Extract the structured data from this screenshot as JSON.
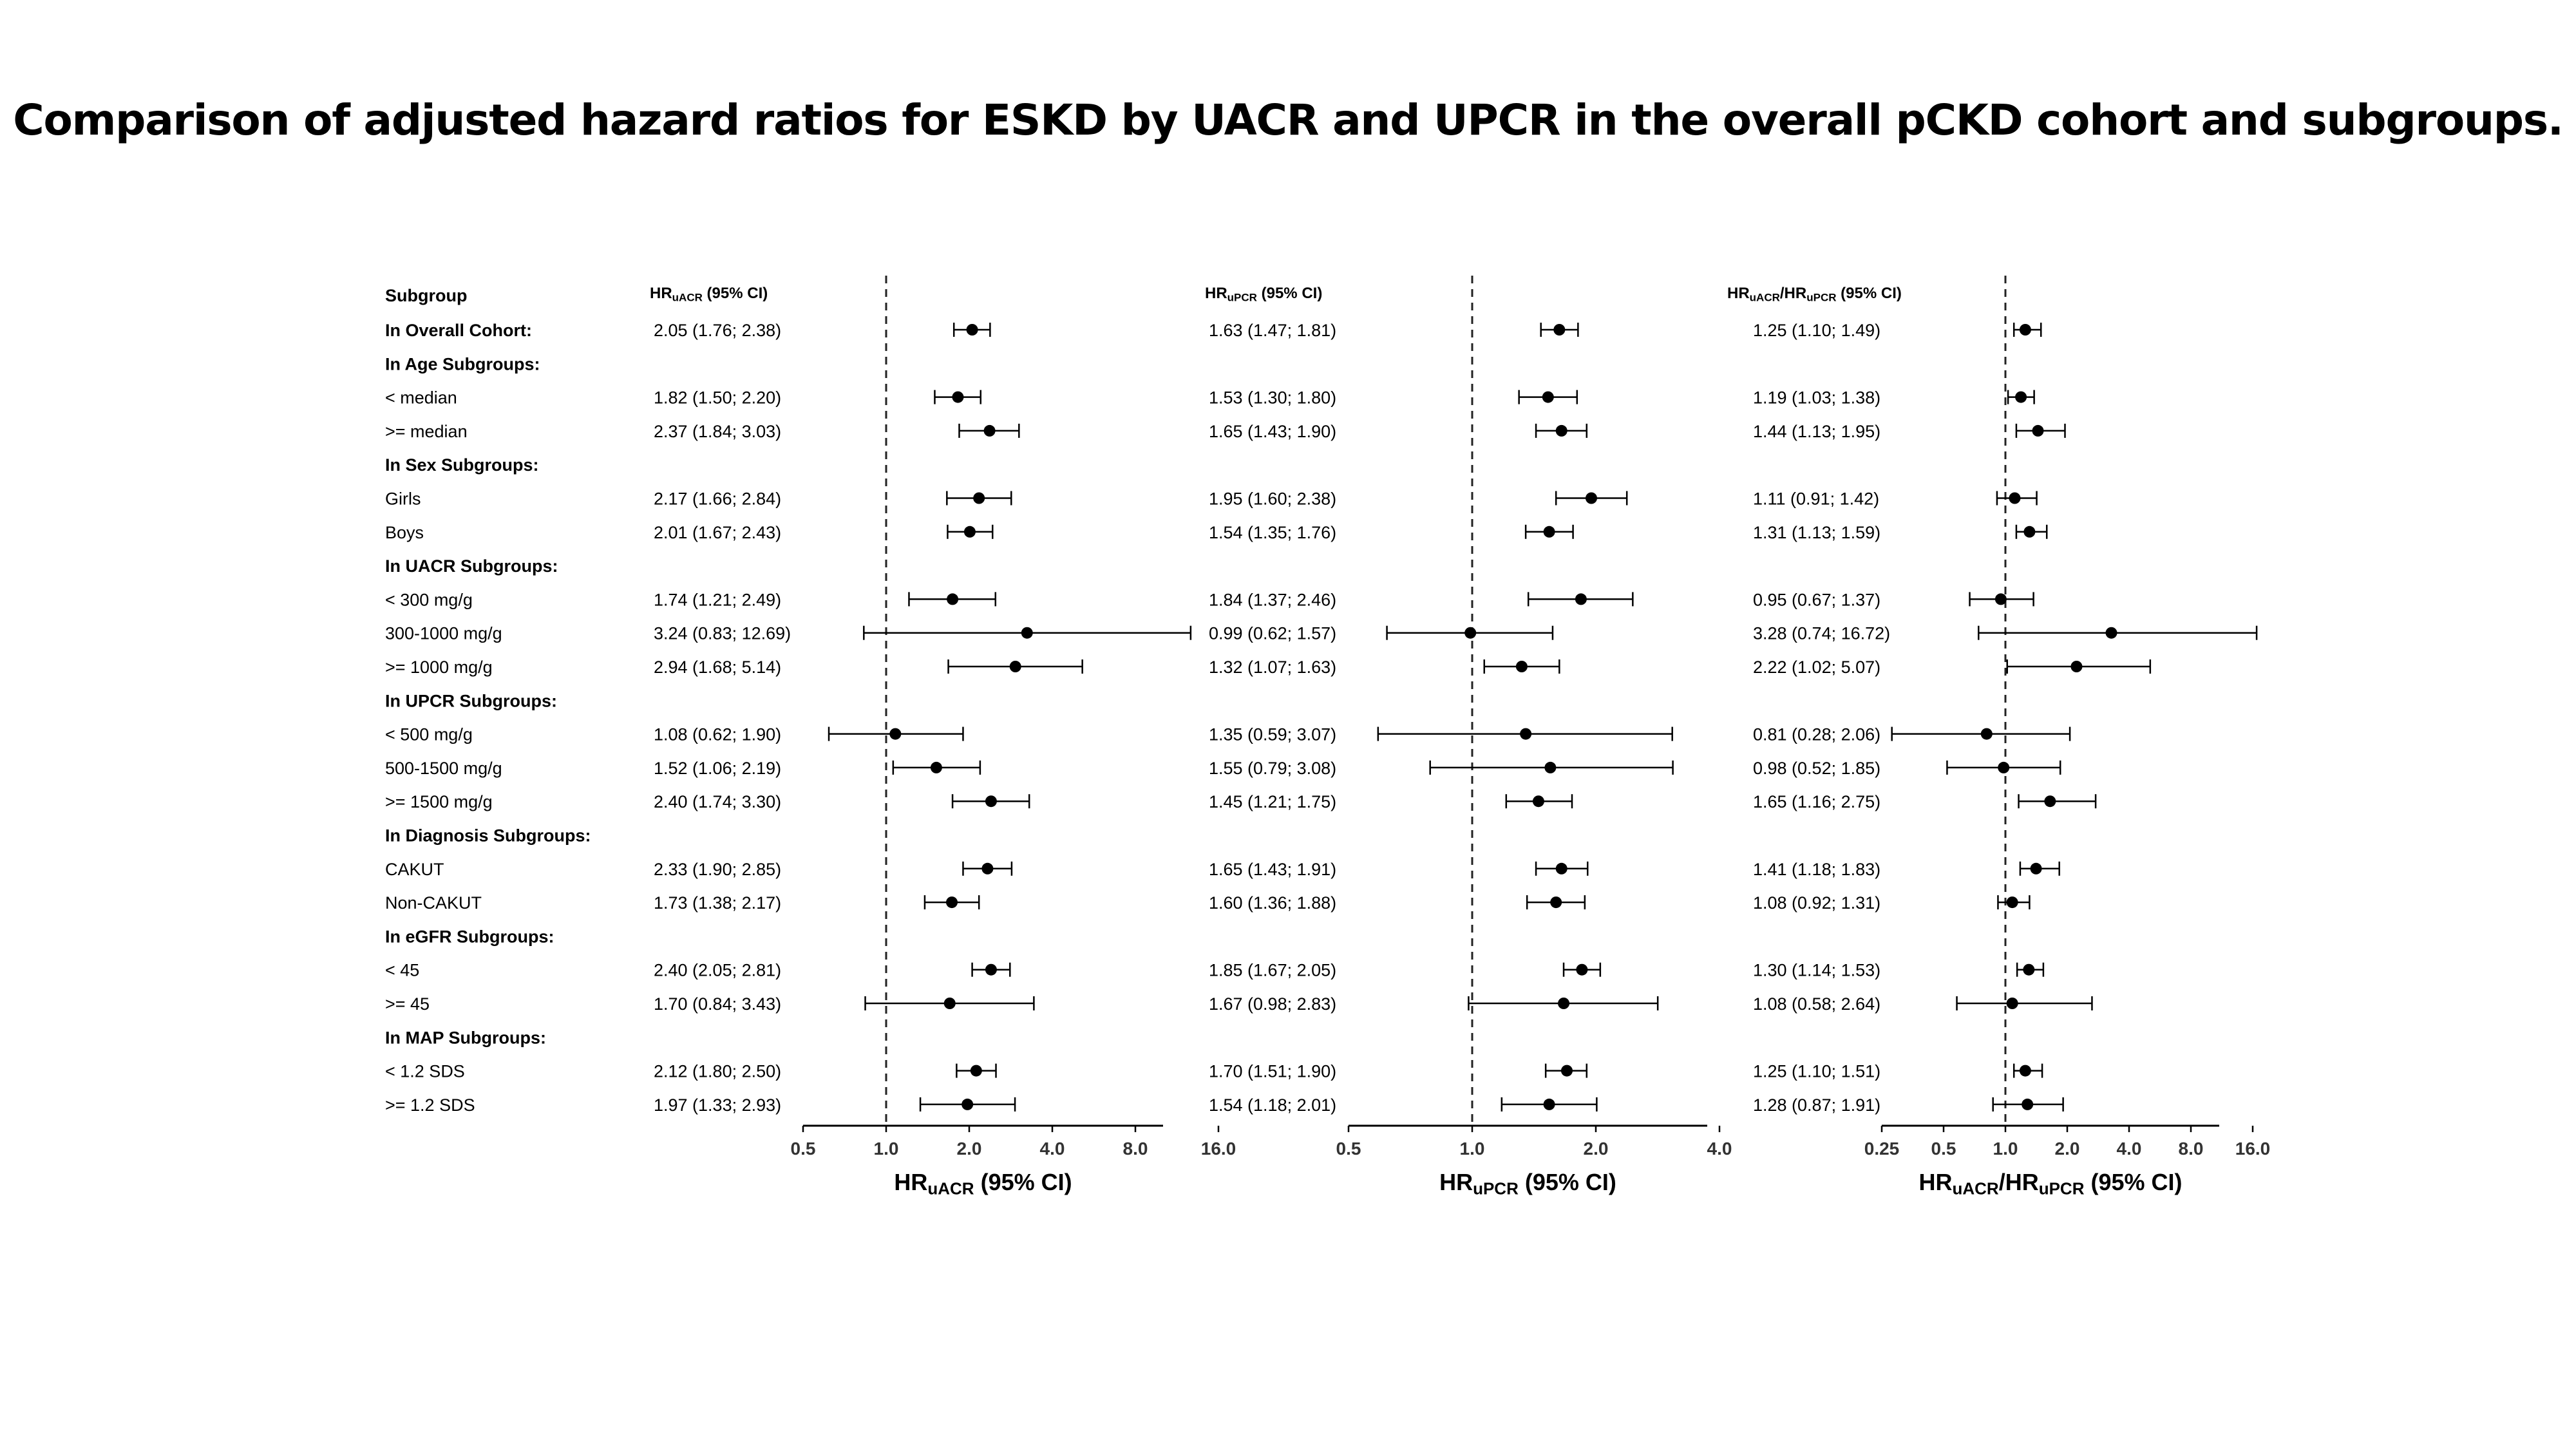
{
  "title": "Comparison of adjusted hazard ratios for ESKD by UACR and UPCR in the overall pCKD cohort and subgroups.",
  "subgroup_header": "Subgroup",
  "rows": [
    {
      "label": "In Overall Cohort:",
      "bold": true
    },
    {
      "label": "In Age Subgroups:",
      "bold": true
    },
    {
      "label": "< median"
    },
    {
      "label": ">= median"
    },
    {
      "label": "In Sex Subgroups:",
      "bold": true
    },
    {
      "label": "Girls"
    },
    {
      "label": "Boys"
    },
    {
      "label": "In UACR Subgroups:",
      "bold": true
    },
    {
      "label": "< 300 mg/g"
    },
    {
      "label": "300-1000 mg/g"
    },
    {
      "label": ">= 1000 mg/g"
    },
    {
      "label": "In UPCR Subgroups:",
      "bold": true
    },
    {
      "label": "< 500 mg/g"
    },
    {
      "label": "500-1500 mg/g"
    },
    {
      "label": ">= 1500 mg/g"
    },
    {
      "label": "In Diagnosis Subgroups:",
      "bold": true
    },
    {
      "label": "CAKUT"
    },
    {
      "label": "Non-CAKUT"
    },
    {
      "label": "In eGFR Subgroups:",
      "bold": true
    },
    {
      "label": "< 45"
    },
    {
      "label": ">= 45"
    },
    {
      "label": "In MAP Subgroups:",
      "bold": true
    },
    {
      "label": "< 1.2 SDS"
    },
    {
      "label": ">= 1.2 SDS"
    }
  ],
  "chart_data": [
    {
      "type": "scatter",
      "subtype": "forest",
      "column_header": {
        "main": "HR",
        "sub": "uACR",
        "tail": " (95% CI)"
      },
      "xlabel": {
        "main": "HR",
        "sub": "uACR",
        "tail": " (95% CI)"
      },
      "x_scale": "log2",
      "xlim": [
        0.5,
        16.0
      ],
      "ticks": [
        0.5,
        1.0,
        2.0,
        4.0,
        8.0,
        16.0
      ],
      "tick_labels": [
        "0.5",
        "1.0",
        "2.0",
        "4.0",
        "8.0",
        "16.0"
      ],
      "reference_line": 1.0,
      "points": [
        {
          "row": 0,
          "est": 2.05,
          "lo": 1.76,
          "hi": 2.38,
          "text": "2.05 (1.76; 2.38)"
        },
        {
          "row": 2,
          "est": 1.82,
          "lo": 1.5,
          "hi": 2.2,
          "text": "1.82 (1.50; 2.20)"
        },
        {
          "row": 3,
          "est": 2.37,
          "lo": 1.84,
          "hi": 3.03,
          "text": "2.37 (1.84; 3.03)"
        },
        {
          "row": 5,
          "est": 2.17,
          "lo": 1.66,
          "hi": 2.84,
          "text": "2.17 (1.66; 2.84)"
        },
        {
          "row": 6,
          "est": 2.01,
          "lo": 1.67,
          "hi": 2.43,
          "text": "2.01 (1.67; 2.43)"
        },
        {
          "row": 8,
          "est": 1.74,
          "lo": 1.21,
          "hi": 2.49,
          "text": "1.74 (1.21; 2.49)"
        },
        {
          "row": 9,
          "est": 3.24,
          "lo": 0.83,
          "hi": 12.69,
          "text": "3.24 (0.83; 12.69)"
        },
        {
          "row": 10,
          "est": 2.94,
          "lo": 1.68,
          "hi": 5.14,
          "text": "2.94 (1.68; 5.14)"
        },
        {
          "row": 12,
          "est": 1.08,
          "lo": 0.62,
          "hi": 1.9,
          "text": "1.08 (0.62; 1.90)"
        },
        {
          "row": 13,
          "est": 1.52,
          "lo": 1.06,
          "hi": 2.19,
          "text": "1.52 (1.06; 2.19)"
        },
        {
          "row": 14,
          "est": 2.4,
          "lo": 1.74,
          "hi": 3.3,
          "text": "2.40 (1.74; 3.30)"
        },
        {
          "row": 16,
          "est": 2.33,
          "lo": 1.9,
          "hi": 2.85,
          "text": "2.33 (1.90; 2.85)"
        },
        {
          "row": 17,
          "est": 1.73,
          "lo": 1.38,
          "hi": 2.17,
          "text": "1.73 (1.38; 2.17)"
        },
        {
          "row": 19,
          "est": 2.4,
          "lo": 2.05,
          "hi": 2.81,
          "text": "2.40 (2.05; 2.81)"
        },
        {
          "row": 20,
          "est": 1.7,
          "lo": 0.84,
          "hi": 3.43,
          "text": "1.70 (0.84; 3.43)"
        },
        {
          "row": 22,
          "est": 2.12,
          "lo": 1.8,
          "hi": 2.5,
          "text": "2.12 (1.80; 2.50)"
        },
        {
          "row": 23,
          "est": 1.97,
          "lo": 1.33,
          "hi": 2.93,
          "text": "1.97 (1.33; 2.93)"
        }
      ]
    },
    {
      "type": "scatter",
      "subtype": "forest",
      "column_header": {
        "main": "HR",
        "sub": "uPCR",
        "tail": " (95% CI)"
      },
      "xlabel": {
        "main": "HR",
        "sub": "uPCR",
        "tail": " (95% CI)"
      },
      "x_scale": "log2",
      "xlim": [
        0.5,
        4.0
      ],
      "ticks": [
        0.5,
        1.0,
        2.0,
        4.0
      ],
      "tick_labels": [
        "0.5",
        "1.0",
        "2.0",
        "4.0"
      ],
      "reference_line": 1.0,
      "points": [
        {
          "row": 0,
          "est": 1.63,
          "lo": 1.47,
          "hi": 1.81,
          "text": "1.63 (1.47; 1.81)"
        },
        {
          "row": 2,
          "est": 1.53,
          "lo": 1.3,
          "hi": 1.8,
          "text": "1.53 (1.30; 1.80)"
        },
        {
          "row": 3,
          "est": 1.65,
          "lo": 1.43,
          "hi": 1.9,
          "text": "1.65 (1.43; 1.90)"
        },
        {
          "row": 5,
          "est": 1.95,
          "lo": 1.6,
          "hi": 2.38,
          "text": "1.95 (1.60; 2.38)"
        },
        {
          "row": 6,
          "est": 1.54,
          "lo": 1.35,
          "hi": 1.76,
          "text": "1.54 (1.35; 1.76)"
        },
        {
          "row": 8,
          "est": 1.84,
          "lo": 1.37,
          "hi": 2.46,
          "text": "1.84 (1.37; 2.46)"
        },
        {
          "row": 9,
          "est": 0.99,
          "lo": 0.62,
          "hi": 1.57,
          "text": "0.99 (0.62; 1.57)"
        },
        {
          "row": 10,
          "est": 1.32,
          "lo": 1.07,
          "hi": 1.63,
          "text": "1.32 (1.07; 1.63)"
        },
        {
          "row": 12,
          "est": 1.35,
          "lo": 0.59,
          "hi": 3.07,
          "text": "1.35 (0.59; 3.07)"
        },
        {
          "row": 13,
          "est": 1.55,
          "lo": 0.79,
          "hi": 3.08,
          "text": "1.55 (0.79; 3.08)"
        },
        {
          "row": 14,
          "est": 1.45,
          "lo": 1.21,
          "hi": 1.75,
          "text": "1.45 (1.21; 1.75)"
        },
        {
          "row": 16,
          "est": 1.65,
          "lo": 1.43,
          "hi": 1.91,
          "text": "1.65 (1.43; 1.91)"
        },
        {
          "row": 17,
          "est": 1.6,
          "lo": 1.36,
          "hi": 1.88,
          "text": "1.60 (1.36; 1.88)"
        },
        {
          "row": 19,
          "est": 1.85,
          "lo": 1.67,
          "hi": 2.05,
          "text": "1.85 (1.67; 2.05)"
        },
        {
          "row": 20,
          "est": 1.67,
          "lo": 0.98,
          "hi": 2.83,
          "text": "1.67 (0.98; 2.83)"
        },
        {
          "row": 22,
          "est": 1.7,
          "lo": 1.51,
          "hi": 1.9,
          "text": "1.70 (1.51; 1.90)"
        },
        {
          "row": 23,
          "est": 1.54,
          "lo": 1.18,
          "hi": 2.01,
          "text": "1.54 (1.18; 2.01)"
        }
      ]
    },
    {
      "type": "scatter",
      "subtype": "forest",
      "column_header": {
        "main": "HR",
        "sub": "uACR",
        "mid": "/HR",
        "sub2": "uPCR",
        "tail": " (95% CI)"
      },
      "xlabel": {
        "main": "HR",
        "sub": "uACR",
        "mid": "/HR",
        "sub2": "uPCR",
        "tail": " (95% CI)"
      },
      "x_scale": "log2",
      "xlim": [
        0.25,
        16.0
      ],
      "ticks": [
        0.25,
        0.5,
        1.0,
        2.0,
        4.0,
        8.0,
        16.0
      ],
      "tick_labels": [
        "0.25",
        "0.5",
        "1.0",
        "2.0",
        "4.0",
        "8.0",
        "16.0"
      ],
      "reference_line": 1.0,
      "points": [
        {
          "row": 0,
          "est": 1.25,
          "lo": 1.1,
          "hi": 1.49,
          "text": "1.25 (1.10; 1.49)"
        },
        {
          "row": 2,
          "est": 1.19,
          "lo": 1.03,
          "hi": 1.38,
          "text": "1.19 (1.03; 1.38)"
        },
        {
          "row": 3,
          "est": 1.44,
          "lo": 1.13,
          "hi": 1.95,
          "text": "1.44 (1.13; 1.95)"
        },
        {
          "row": 5,
          "est": 1.11,
          "lo": 0.91,
          "hi": 1.42,
          "text": "1.11 (0.91; 1.42)"
        },
        {
          "row": 6,
          "est": 1.31,
          "lo": 1.13,
          "hi": 1.59,
          "text": "1.31 (1.13; 1.59)"
        },
        {
          "row": 8,
          "est": 0.95,
          "lo": 0.67,
          "hi": 1.37,
          "text": "0.95 (0.67; 1.37)"
        },
        {
          "row": 9,
          "est": 3.28,
          "lo": 0.74,
          "hi": 16.72,
          "text": "3.28 (0.74; 16.72)"
        },
        {
          "row": 10,
          "est": 2.22,
          "lo": 1.02,
          "hi": 5.07,
          "text": "2.22 (1.02; 5.07)"
        },
        {
          "row": 12,
          "est": 0.81,
          "lo": 0.28,
          "hi": 2.06,
          "text": "0.81 (0.28; 2.06)"
        },
        {
          "row": 13,
          "est": 0.98,
          "lo": 0.52,
          "hi": 1.85,
          "text": "0.98 (0.52; 1.85)"
        },
        {
          "row": 14,
          "est": 1.65,
          "lo": 1.16,
          "hi": 2.75,
          "text": "1.65 (1.16; 2.75)"
        },
        {
          "row": 16,
          "est": 1.41,
          "lo": 1.18,
          "hi": 1.83,
          "text": "1.41 (1.18; 1.83)"
        },
        {
          "row": 17,
          "est": 1.08,
          "lo": 0.92,
          "hi": 1.31,
          "text": "1.08 (0.92; 1.31)"
        },
        {
          "row": 19,
          "est": 1.3,
          "lo": 1.14,
          "hi": 1.53,
          "text": "1.30 (1.14; 1.53)"
        },
        {
          "row": 20,
          "est": 1.08,
          "lo": 0.58,
          "hi": 2.64,
          "text": "1.08 (0.58; 2.64)"
        },
        {
          "row": 22,
          "est": 1.25,
          "lo": 1.1,
          "hi": 1.51,
          "text": "1.25 (1.10; 1.51)"
        },
        {
          "row": 23,
          "est": 1.28,
          "lo": 0.87,
          "hi": 1.91,
          "text": "1.28 (0.87; 1.91)"
        }
      ]
    }
  ]
}
